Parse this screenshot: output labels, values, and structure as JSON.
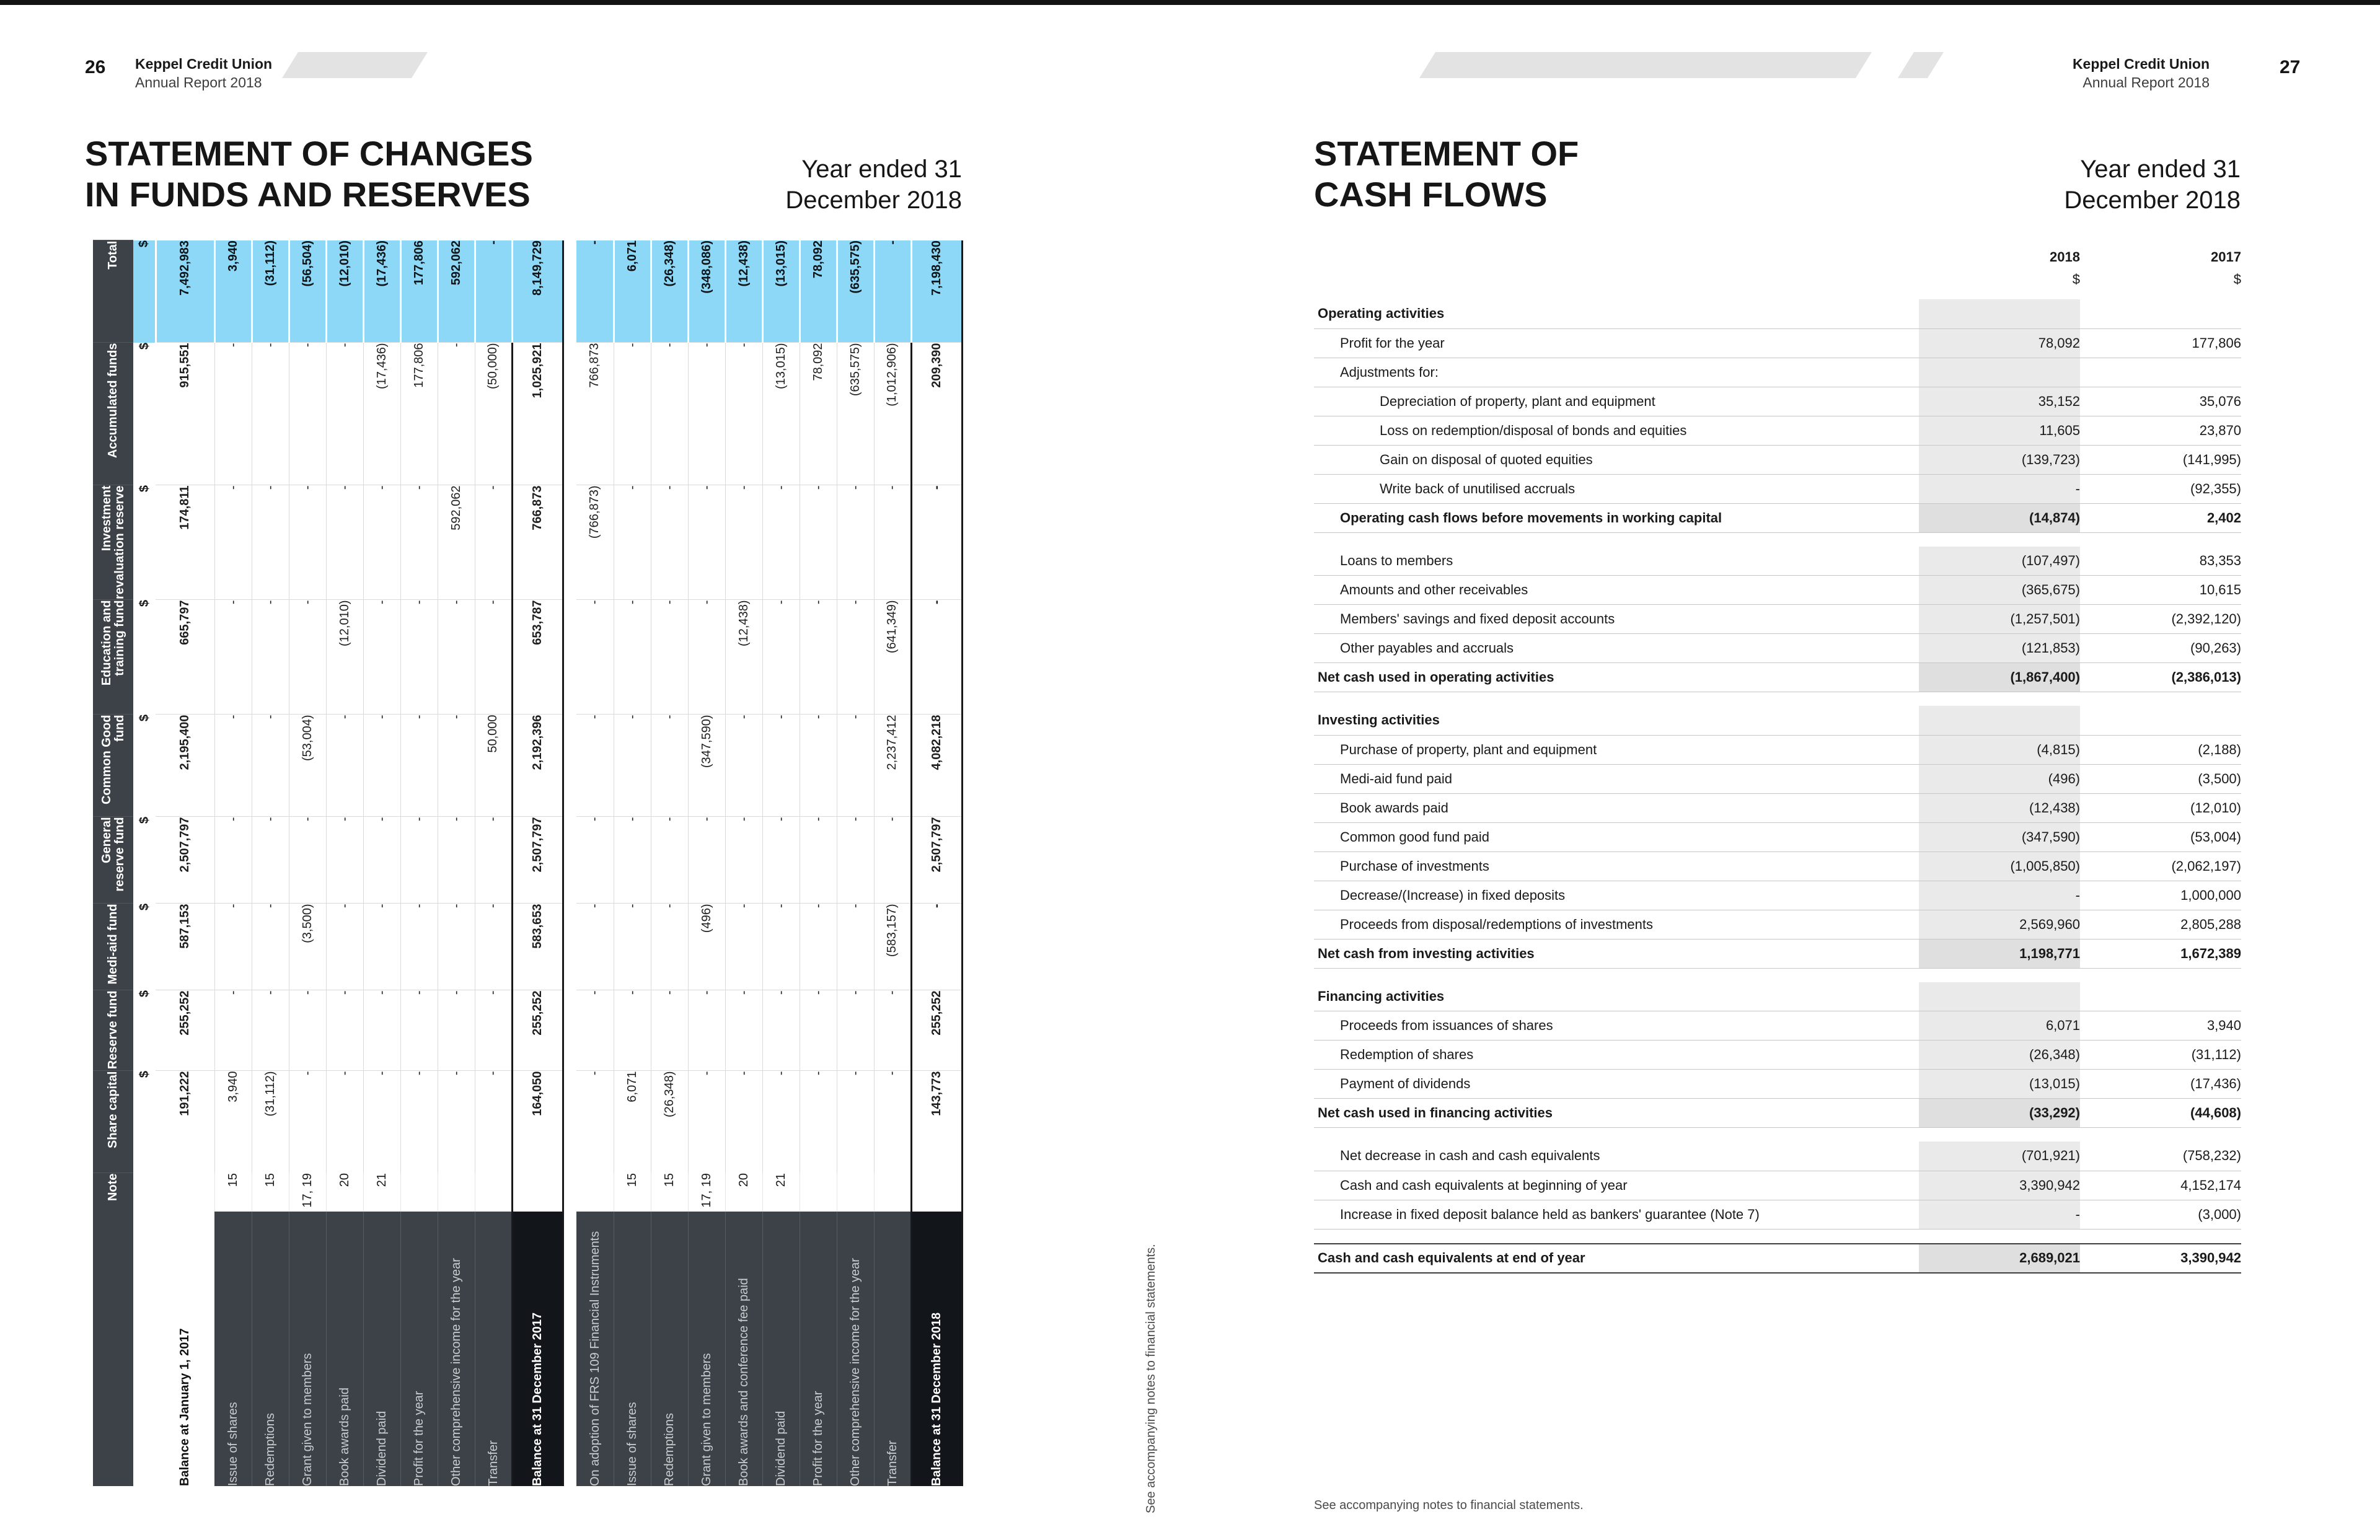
{
  "pages": {
    "left": {
      "page_number": "26",
      "org": "Keppel Credit Union",
      "report": "Annual Report 2018",
      "title_lines": [
        "STATEMENT OF CHANGES",
        "IN FUNDS AND RESERVES"
      ],
      "period_lines": [
        "Year ended 31",
        "December 2018"
      ],
      "footnote": "See accompanying notes to financial statements."
    },
    "right": {
      "page_number": "27",
      "org": "Keppel Credit Union",
      "report": "Annual Report 2018",
      "title_lines": [
        "STATEMENT OF",
        "CASH FLOWS"
      ],
      "period_lines": [
        "Year ended 31",
        "December 2018"
      ],
      "footnote": "See accompanying notes to financial statements."
    }
  },
  "colors": {
    "accent_blue": "#8CD8F6",
    "header_dark": "#3C4247",
    "closing_dark": "#121519",
    "row_shade": "#EAEAEA"
  },
  "funds_table": {
    "note_header": "Note",
    "currency": "$",
    "columns": [
      "Share capital",
      "Reserve fund",
      "Medi-aid fund",
      "General reserve fund",
      "Common Good fund",
      "Education and training fund",
      "Investment revaluation reserve",
      "Accumulated funds",
      "Total"
    ],
    "rows": [
      {
        "type": "opening",
        "label": "Balance at January 1, 2017",
        "note": "",
        "values": [
          "191,222",
          "255,252",
          "587,153",
          "2,507,797",
          "2,195,400",
          "665,797",
          "174,811",
          "915,551",
          "7,492,983"
        ]
      },
      {
        "type": "normal",
        "label": "Issue of shares",
        "note": "15",
        "values": [
          "3,940",
          "-",
          "-",
          "-",
          "-",
          "-",
          "-",
          "-",
          "3,940"
        ]
      },
      {
        "type": "normal",
        "label": "Redemptions",
        "note": "15",
        "values": [
          "(31,112)",
          "-",
          "-",
          "-",
          "-",
          "-",
          "-",
          "-",
          "(31,112)"
        ]
      },
      {
        "type": "normal",
        "label": "Grant given to members",
        "note": "17, 19",
        "values": [
          "-",
          "-",
          "(3,500)",
          "-",
          "(53,004)",
          "-",
          "-",
          "-",
          "(56,504)"
        ]
      },
      {
        "type": "normal",
        "label": "Book awards paid",
        "note": "20",
        "values": [
          "-",
          "-",
          "-",
          "-",
          "-",
          "(12,010)",
          "-",
          "-",
          "(12,010)"
        ]
      },
      {
        "type": "normal",
        "label": "Dividend paid",
        "note": "21",
        "values": [
          "-",
          "-",
          "-",
          "-",
          "-",
          "-",
          "-",
          "(17,436)",
          "(17,436)"
        ]
      },
      {
        "type": "normal",
        "label": "Profit for the year",
        "note": "",
        "values": [
          "-",
          "-",
          "-",
          "-",
          "-",
          "-",
          "-",
          "177,806",
          "177,806"
        ]
      },
      {
        "type": "normal",
        "label": "Other comprehensive income for the year",
        "note": "",
        "values": [
          "-",
          "-",
          "-",
          "-",
          "-",
          "-",
          "592,062",
          "-",
          "592,062"
        ]
      },
      {
        "type": "normal",
        "label": "Transfer",
        "note": "",
        "values": [
          "-",
          "-",
          "-",
          "-",
          "50,000",
          "-",
          "-",
          "(50,000)",
          "-"
        ]
      },
      {
        "type": "closing",
        "label": "Balance at 31 December 2017",
        "note": "",
        "values": [
          "164,050",
          "255,252",
          "583,653",
          "2,507,797",
          "2,192,396",
          "653,787",
          "766,873",
          "1,025,921",
          "8,149,729"
        ]
      },
      {
        "type": "gap"
      },
      {
        "type": "normal",
        "label": "On adoption of FRS 109 Financial Instruments",
        "note": "",
        "values": [
          "-",
          "-",
          "-",
          "-",
          "-",
          "-",
          "(766,873)",
          "766,873",
          "-"
        ]
      },
      {
        "type": "normal",
        "label": "Issue of shares",
        "note": "15",
        "values": [
          "6,071",
          "-",
          "-",
          "-",
          "-",
          "-",
          "-",
          "-",
          "6,071"
        ]
      },
      {
        "type": "normal",
        "label": "Redemptions",
        "note": "15",
        "values": [
          "(26,348)",
          "-",
          "-",
          "-",
          "-",
          "-",
          "-",
          "-",
          "(26,348)"
        ]
      },
      {
        "type": "normal",
        "label": "Grant given to members",
        "note": "17, 19",
        "values": [
          "-",
          "-",
          "(496)",
          "-",
          "(347,590)",
          "-",
          "-",
          "-",
          "(348,086)"
        ]
      },
      {
        "type": "normal",
        "label": "Book awards and conference fee paid",
        "note": "20",
        "values": [
          "-",
          "-",
          "-",
          "-",
          "-",
          "(12,438)",
          "-",
          "-",
          "(12,438)"
        ]
      },
      {
        "type": "normal",
        "label": "Dividend paid",
        "note": "21",
        "values": [
          "-",
          "-",
          "-",
          "-",
          "-",
          "-",
          "-",
          "(13,015)",
          "(13,015)"
        ]
      },
      {
        "type": "normal",
        "label": "Profit for the year",
        "note": "",
        "values": [
          "-",
          "-",
          "-",
          "-",
          "-",
          "-",
          "-",
          "78,092",
          "78,092"
        ]
      },
      {
        "type": "normal",
        "label": "Other comprehensive income for the year",
        "note": "",
        "values": [
          "-",
          "-",
          "-",
          "-",
          "-",
          "-",
          "-",
          "(635,575)",
          "(635,575)"
        ]
      },
      {
        "type": "normal",
        "label": "Transfer",
        "note": "",
        "values": [
          "-",
          "-",
          "(583,157)",
          "-",
          "2,237,412",
          "(641,349)",
          "-",
          "(1,012,906)",
          "-"
        ]
      },
      {
        "type": "closing",
        "label": "Balance at 31 December 2018",
        "note": "",
        "values": [
          "143,773",
          "255,252",
          "-",
          "2,507,797",
          "4,082,218",
          "-",
          "-",
          "209,390",
          "7,198,430"
        ]
      }
    ]
  },
  "cash_flow": {
    "years": [
      "2018",
      "2017"
    ],
    "currency": "$",
    "rows": [
      {
        "type": "section",
        "indent": 0,
        "label": "Operating activities",
        "v2018": "",
        "v2017": ""
      },
      {
        "type": "normal",
        "indent": 1,
        "label": "Profit for the year",
        "v2018": "78,092",
        "v2017": "177,806"
      },
      {
        "type": "normal",
        "indent": 1,
        "label": "Adjustments for:",
        "v2018": "",
        "v2017": ""
      },
      {
        "type": "normal",
        "indent": 2,
        "label": "Depreciation of property, plant and equipment",
        "v2018": "35,152",
        "v2017": "35,076"
      },
      {
        "type": "normal",
        "indent": 2,
        "label": "Loss on redemption/disposal of bonds and equities",
        "v2018": "11,605",
        "v2017": "23,870"
      },
      {
        "type": "normal",
        "indent": 2,
        "label": "Gain on disposal of quoted equities",
        "v2018": "(139,723)",
        "v2017": "(141,995)"
      },
      {
        "type": "normal",
        "indent": 2,
        "label": "Write back of unutilised accruals",
        "v2018": "-",
        "v2017": "(92,355)"
      },
      {
        "type": "bold",
        "indent": 1,
        "label": "Operating cash flows before movements in working capital",
        "v2018": "(14,874)",
        "v2017": "2,402"
      },
      {
        "type": "spacer"
      },
      {
        "type": "normal",
        "indent": 1,
        "label": "Loans to members",
        "v2018": "(107,497)",
        "v2017": "83,353"
      },
      {
        "type": "normal",
        "indent": 1,
        "label": "Amounts and other receivables",
        "v2018": "(365,675)",
        "v2017": "10,615"
      },
      {
        "type": "normal",
        "indent": 1,
        "label": "Members' savings and fixed deposit accounts",
        "v2018": "(1,257,501)",
        "v2017": "(2,392,120)"
      },
      {
        "type": "normal",
        "indent": 1,
        "label": "Other payables and accruals",
        "v2018": "(121,853)",
        "v2017": "(90,263)"
      },
      {
        "type": "bold",
        "indent": 0,
        "label": "Net cash used in operating activities",
        "v2018": "(1,867,400)",
        "v2017": "(2,386,013)"
      },
      {
        "type": "spacer"
      },
      {
        "type": "section",
        "indent": 0,
        "label": "Investing activities",
        "v2018": "",
        "v2017": ""
      },
      {
        "type": "normal",
        "indent": 1,
        "label": "Purchase of property, plant and equipment",
        "v2018": "(4,815)",
        "v2017": "(2,188)"
      },
      {
        "type": "normal",
        "indent": 1,
        "label": "Medi-aid fund paid",
        "v2018": "(496)",
        "v2017": "(3,500)"
      },
      {
        "type": "normal",
        "indent": 1,
        "label": "Book awards paid",
        "v2018": "(12,438)",
        "v2017": "(12,010)"
      },
      {
        "type": "normal",
        "indent": 1,
        "label": "Common good fund paid",
        "v2018": "(347,590)",
        "v2017": "(53,004)"
      },
      {
        "type": "normal",
        "indent": 1,
        "label": "Purchase of investments",
        "v2018": "(1,005,850)",
        "v2017": "(2,062,197)"
      },
      {
        "type": "normal",
        "indent": 1,
        "label": "Decrease/(Increase) in fixed deposits",
        "v2018": "-",
        "v2017": "1,000,000"
      },
      {
        "type": "normal",
        "indent": 1,
        "label": "Proceeds from disposal/redemptions of investments",
        "v2018": "2,569,960",
        "v2017": "2,805,288"
      },
      {
        "type": "bold",
        "indent": 0,
        "label": "Net cash from investing activities",
        "v2018": "1,198,771",
        "v2017": "1,672,389"
      },
      {
        "type": "spacer"
      },
      {
        "type": "section",
        "indent": 0,
        "label": "Financing activities",
        "v2018": "",
        "v2017": ""
      },
      {
        "type": "normal",
        "indent": 1,
        "label": "Proceeds from issuances of shares",
        "v2018": "6,071",
        "v2017": "3,940"
      },
      {
        "type": "normal",
        "indent": 1,
        "label": "Redemption of shares",
        "v2018": "(26,348)",
        "v2017": "(31,112)"
      },
      {
        "type": "normal",
        "indent": 1,
        "label": "Payment of dividends",
        "v2018": "(13,015)",
        "v2017": "(17,436)"
      },
      {
        "type": "bold",
        "indent": 0,
        "label": "Net cash used in financing activities",
        "v2018": "(33,292)",
        "v2017": "(44,608)"
      },
      {
        "type": "spacer"
      },
      {
        "type": "normal",
        "indent": 1,
        "label": "Net decrease in cash and cash equivalents",
        "v2018": "(701,921)",
        "v2017": "(758,232)"
      },
      {
        "type": "normal",
        "indent": 1,
        "label": "Cash and cash equivalents at beginning of year",
        "v2018": "3,390,942",
        "v2017": "4,152,174"
      },
      {
        "type": "normal",
        "indent": 1,
        "label": "Increase in fixed deposit balance held as bankers' guarantee (Note 7)",
        "v2018": "-",
        "v2017": "(3,000)"
      },
      {
        "type": "spacer"
      },
      {
        "type": "end",
        "indent": 0,
        "label": "Cash and cash equivalents at end of year",
        "v2018": "2,689,021",
        "v2017": "3,390,942"
      }
    ]
  }
}
